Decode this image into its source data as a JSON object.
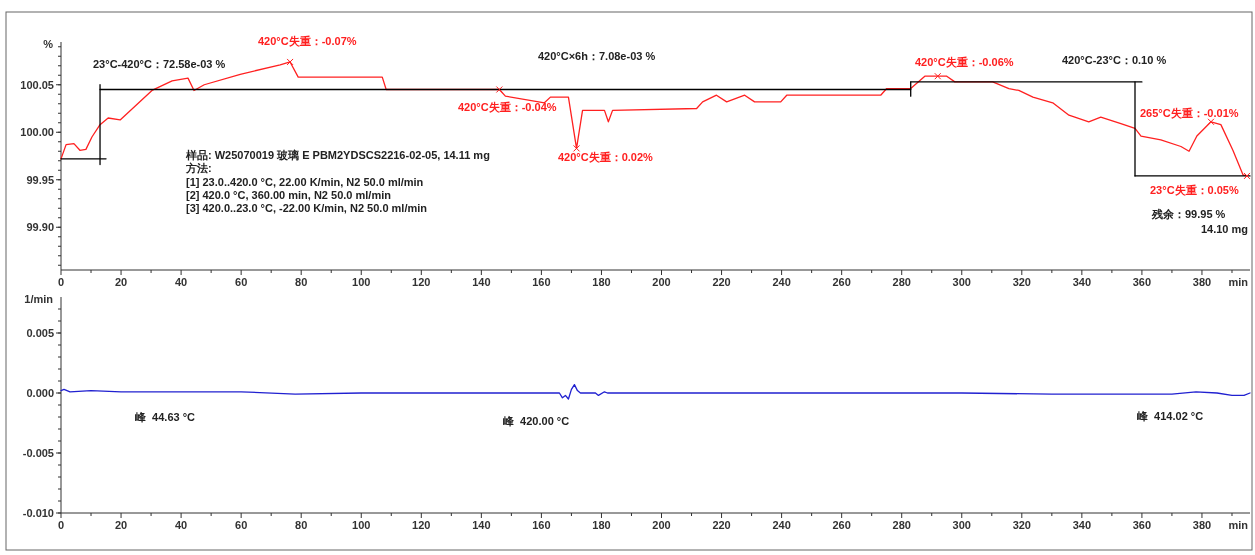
{
  "chart_data": [
    {
      "type": "line",
      "xlabel": "min",
      "ylabel": "%",
      "xlim": [
        0,
        396
      ],
      "ylim": [
        99.855,
        100.095
      ],
      "xticks": [
        0,
        20,
        40,
        60,
        80,
        100,
        120,
        140,
        160,
        180,
        200,
        220,
        240,
        260,
        280,
        300,
        320,
        340,
        360,
        380
      ],
      "yticks": [
        {
          "value": 99.9,
          "label": "99.90"
        },
        {
          "value": 99.95,
          "label": "99.95"
        },
        {
          "value": 100,
          "label": "100.00"
        },
        {
          "value": 100.05,
          "label": "100.05"
        }
      ],
      "series": [
        {
          "color": "#ff2020",
          "x": [
            0,
            1.7,
            4.3,
            6.3,
            8.3,
            10.3,
            13,
            15.7,
            19.7,
            30.3,
            37,
            42.3,
            44.3,
            47.7,
            59.7,
            73,
            76.3,
            79,
            107,
            108.3,
            146,
            148,
            161,
            163,
            167.7,
            169,
            171.7,
            173.7,
            181,
            182.3,
            183.7,
            211.7,
            213.7,
            218.3,
            221.7,
            227.7,
            231,
            239.7,
            241.7,
            273,
            275,
            283,
            287.7,
            295,
            297.7,
            310.3,
            315.7,
            319,
            323.7,
            330.3,
            335.7,
            342.3,
            346.3,
            353,
            357.7,
            359.7,
            366.3,
            373,
            375.7,
            378.3,
            383,
            386.3,
            390.3,
            393.7,
            395
          ],
          "values": [
            99.972,
            99.987,
            99.988,
            99.981,
            99.982,
            99.995,
            100.008,
            100.015,
            100.013,
            100.044,
            100.054,
            100.057,
            100.044,
            100.05,
            100.061,
            100.071,
            100.074,
            100.058,
            100.058,
            100.045,
            100.045,
            100.038,
            100.031,
            100.037,
            100.037,
            100.037,
            99.983,
            100.023,
            100.023,
            100.011,
            100.023,
            100.025,
            100.032,
            100.039,
            100.032,
            100.039,
            100.032,
            100.032,
            100.039,
            100.039,
            100.046,
            100.046,
            100.059,
            100.059,
            100.053,
            100.053,
            100.046,
            100.044,
            100.037,
            100.031,
            100.018,
            100.011,
            100.016,
            100.009,
            100.004,
            99.996,
            99.992,
            99.985,
            99.98,
            99.996,
            100.011,
            100.008,
            99.981,
            99.955,
            99.954
          ]
        },
        {
          "color": "#000000",
          "x": [
            0,
            15
          ],
          "values": [
            99.972,
            99.972
          ]
        },
        {
          "color": "#000000",
          "x": [
            13,
            13
          ],
          "values": [
            99.966,
            100.05
          ]
        },
        {
          "color": "#000000",
          "x": [
            13,
            283
          ],
          "values": [
            100.045,
            100.045
          ]
        },
        {
          "color": "#000000",
          "x": [
            283,
            283
          ],
          "values": [
            100.038,
            100.053
          ]
        },
        {
          "color": "#000000",
          "x": [
            283,
            360
          ],
          "values": [
            100.053,
            100.053
          ]
        },
        {
          "color": "#000000",
          "x": [
            357.7,
            357.7
          ],
          "values": [
            100.053,
            99.954
          ]
        },
        {
          "color": "#000000",
          "x": [
            357.7,
            396
          ],
          "values": [
            99.954,
            99.954
          ]
        }
      ],
      "annotations": [
        "23°C-420°C：72.58e-03 %",
        "420°C×6h：7.08e-03 %",
        "420°C-23°C：0.10 %",
        "样品: W25070019 玻璃 E PBM2YDSCS2216-02-05, 14.11 mg",
        "方法:",
        "[1] 23.0..420.0 °C, 22.00 K/min, N2 50.0 ml/min",
        "[2] 420.0 °C, 360.00 min, N2 50.0 ml/min",
        "[3] 420.0..23.0 °C, -22.00 K/min, N2 50.0 ml/min",
        "残余：99.95 %",
        "14.10 mg",
        {
          "text": "420°C失重：-0.07%",
          "x": 76.3,
          "y": 100.074
        },
        {
          "text": "420°C失重：-0.04%",
          "x": 146,
          "y": 100.045
        },
        {
          "text": "420°C失重：0.02%",
          "x": 171.7,
          "y": 99.983
        },
        {
          "text": "420°C失重：-0.06%",
          "x": 292,
          "y": 100.059
        },
        {
          "text": "265°C失重：-0.01%",
          "x": 383,
          "y": 100.011
        },
        {
          "text": "23°C失重：0.05%",
          "x": 395,
          "y": 99.954
        }
      ]
    },
    {
      "type": "line",
      "xlabel": "min",
      "ylabel": "1/min",
      "xlim": [
        0,
        396
      ],
      "ylim": [
        -0.01,
        0.008
      ],
      "xticks": [
        0,
        20,
        40,
        60,
        80,
        100,
        120,
        140,
        160,
        180,
        200,
        220,
        240,
        260,
        280,
        300,
        320,
        340,
        360,
        380
      ],
      "yticks": [
        {
          "value": -0.01,
          "label": "-0.010"
        },
        {
          "value": -0.005,
          "label": "-0.005"
        },
        {
          "value": 0,
          "label": "0.000"
        },
        {
          "value": 0.005,
          "label": "0.005"
        }
      ],
      "series": [
        {
          "color": "#2020d0",
          "x": [
            0,
            1,
            3,
            10,
            20,
            40,
            60,
            78,
            100,
            120,
            145,
            160,
            166,
            167,
            168,
            169,
            170,
            171,
            172,
            173,
            178,
            179,
            181,
            182,
            200,
            300,
            330,
            370,
            378,
            385,
            390,
            394,
            396
          ],
          "values": [
            0.0002,
            0.0003,
            0.0001,
            0.0002,
            0.0001,
            0.0001,
            0.0001,
            -0.0001,
            0,
            0,
            0,
            0,
            0,
            -0.0004,
            -0.0002,
            -0.0005,
            0.0003,
            0.0007,
            0.0002,
            0,
            0,
            -0.0002,
            0.0001,
            0,
            0,
            0,
            -0.0001,
            -0.0001,
            0.0001,
            0,
            -0.0002,
            -0.0002,
            0
          ]
        }
      ],
      "annotations": [
        "峰  44.63 °C",
        "峰  420.00 °C",
        "峰  414.02 °C"
      ]
    }
  ]
}
